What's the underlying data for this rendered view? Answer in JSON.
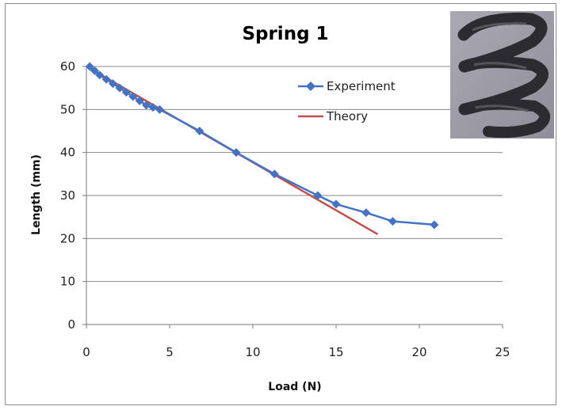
{
  "chart_data": {
    "type": "line",
    "title": "Spring 1",
    "xlabel": "Load (N)",
    "ylabel": "Length (mm)",
    "xlim": [
      0,
      25
    ],
    "ylim": [
      0,
      60
    ],
    "xticks": [
      "0",
      "5",
      "10",
      "15",
      "20",
      "25"
    ],
    "yticks": [
      "0",
      "10",
      "20",
      "30",
      "40",
      "50",
      "60"
    ],
    "grid": "horizontal",
    "legend_position": "top-right",
    "inset_image": "photo of coiled spring",
    "series": [
      {
        "name": "Experiment",
        "color": "#4472C4",
        "marker": "diamond",
        "x": [
          0.2,
          0.5,
          0.8,
          1.2,
          1.6,
          2.0,
          2.4,
          2.8,
          3.2,
          3.6,
          4.0,
          4.4,
          6.8,
          9.0,
          11.3,
          13.9,
          15.0,
          16.8,
          18.4,
          20.9
        ],
        "y": [
          60,
          59,
          58,
          57,
          56,
          55,
          54,
          53,
          52,
          51,
          50.5,
          50,
          45,
          40,
          35,
          30,
          28,
          26,
          24,
          23.2
        ]
      },
      {
        "name": "Theory",
        "color": "#C0504D",
        "marker": "none",
        "x": [
          0,
          17.5
        ],
        "y": [
          60,
          21
        ]
      }
    ]
  }
}
